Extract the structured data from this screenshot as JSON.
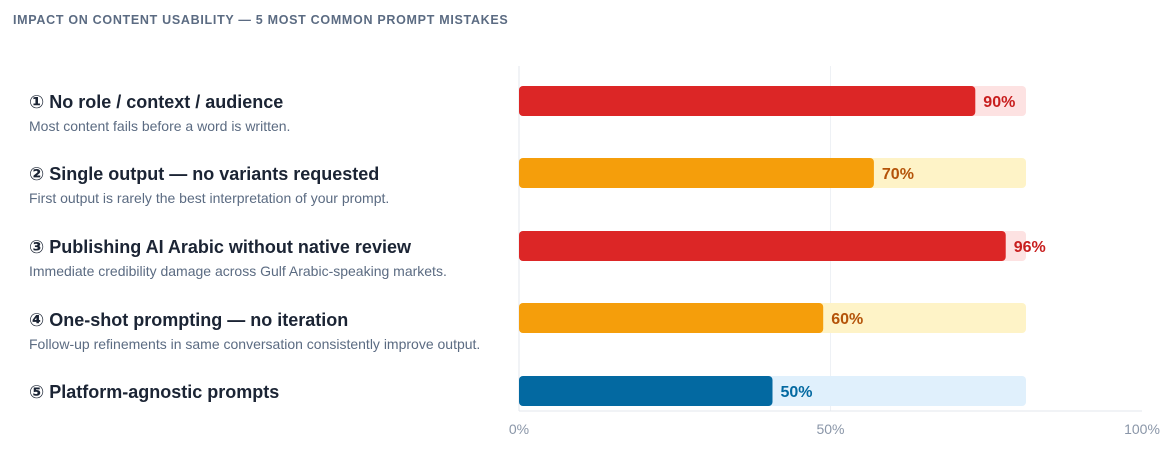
{
  "chart_data": {
    "type": "bar",
    "orientation": "horizontal",
    "title": "IMPACT ON CONTENT USABILITY — 5 MOST COMMON PROMPT MISTAKES",
    "xlim": [
      0,
      100
    ],
    "ticks": [
      {
        "value": 0,
        "label": "0%"
      },
      {
        "value": 50,
        "label": "50%"
      },
      {
        "value": 100,
        "label": "100%"
      }
    ],
    "grid": true,
    "items": [
      {
        "name": "① No role / context / audience",
        "description": "Most content fails before a word is written.",
        "value": 90,
        "label": "90%",
        "color": "#dc2626",
        "track_color": "#fde2e2",
        "label_color": "#c81e1e"
      },
      {
        "name": "② Single output — no variants requested",
        "description": "First output is rarely the best interpretation of your prompt.",
        "value": 70,
        "label": "70%",
        "color": "#f59e0b",
        "track_color": "#fef3c7",
        "label_color": "#b45309"
      },
      {
        "name": "③ Publishing AI Arabic without native review",
        "description": "Immediate credibility damage across Gulf Arabic-speaking markets.",
        "value": 96,
        "label": "96%",
        "color": "#dc2626",
        "track_color": "#fde2e2",
        "label_color": "#c81e1e"
      },
      {
        "name": "④ One-shot prompting — no iteration",
        "description": "Follow-up refinements in same conversation consistently improve output.",
        "value": 60,
        "label": "60%",
        "color": "#f59e0b",
        "track_color": "#fef3c7",
        "label_color": "#b45309"
      },
      {
        "name": "⑤ Platform-agnostic prompts",
        "description": "",
        "value": 50,
        "label": "50%",
        "color": "#0369a1",
        "track_color": "#e0f0fc",
        "label_color": "#0369a1"
      }
    ]
  }
}
